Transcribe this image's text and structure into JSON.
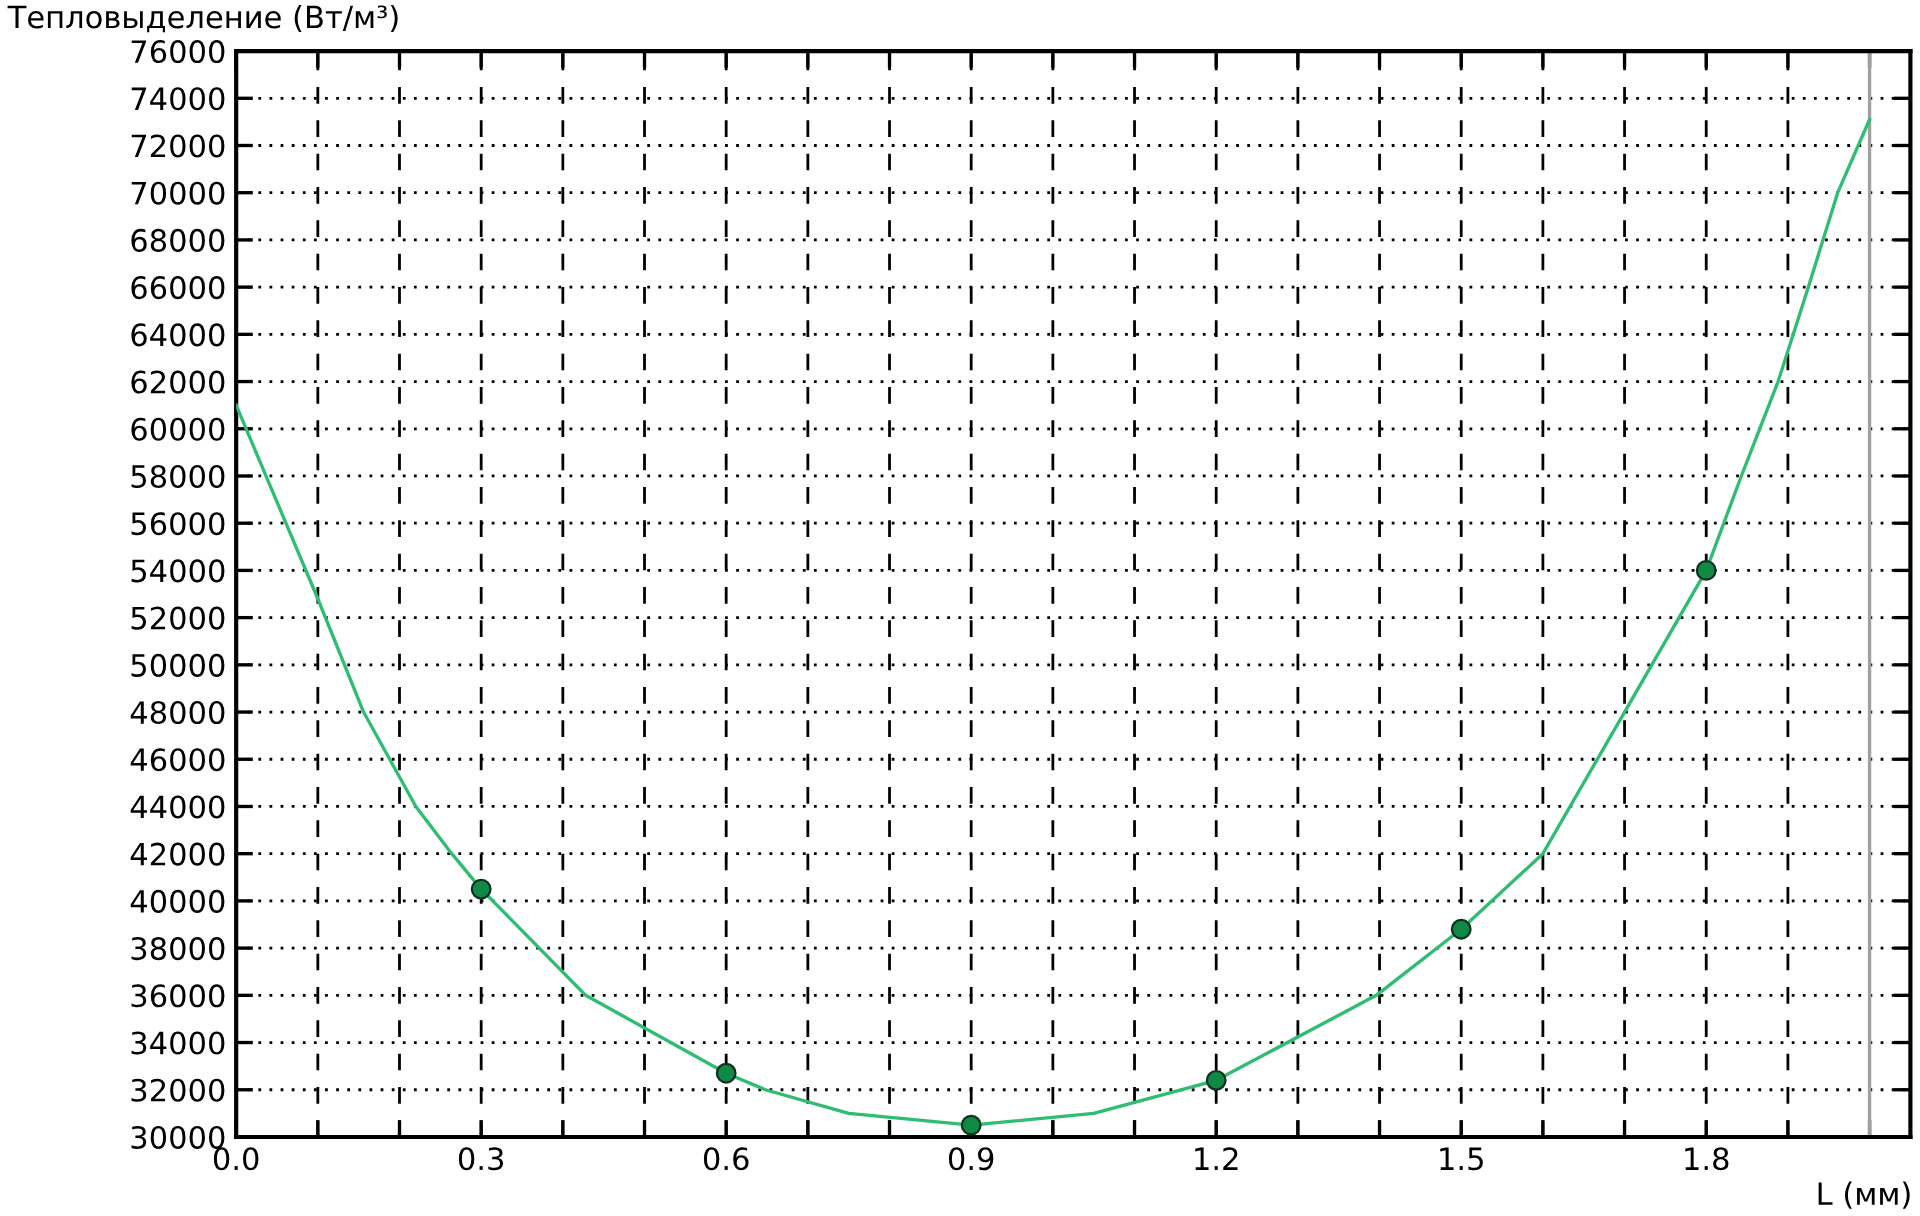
{
  "chart_data": {
    "type": "line",
    "ylabel": "Тепловыделение (Вт/м³)",
    "xlabel": "L (мм)",
    "xlim": [
      0,
      2.05
    ],
    "ylim": [
      30000,
      76000
    ],
    "xticks": [
      {
        "value": 0,
        "label": "0.0"
      },
      {
        "value": 0.1,
        "label": null
      },
      {
        "value": 0.2,
        "label": null
      },
      {
        "value": 0.3,
        "label": "0.3"
      },
      {
        "value": 0.4,
        "label": null
      },
      {
        "value": 0.5,
        "label": null
      },
      {
        "value": 0.6,
        "label": "0.6"
      },
      {
        "value": 0.7,
        "label": null
      },
      {
        "value": 0.8,
        "label": null
      },
      {
        "value": 0.9,
        "label": "0.9"
      },
      {
        "value": 1.0,
        "label": null
      },
      {
        "value": 1.1,
        "label": null
      },
      {
        "value": 1.2,
        "label": "1.2"
      },
      {
        "value": 1.3,
        "label": null
      },
      {
        "value": 1.4,
        "label": null
      },
      {
        "value": 1.5,
        "label": "1.5"
      },
      {
        "value": 1.6,
        "label": null
      },
      {
        "value": 1.7,
        "label": null
      },
      {
        "value": 1.8,
        "label": "1.8"
      },
      {
        "value": 1.9,
        "label": null
      },
      {
        "value": 2.0,
        "label": null
      }
    ],
    "yticks": [
      30000,
      32000,
      34000,
      36000,
      38000,
      40000,
      42000,
      44000,
      46000,
      48000,
      50000,
      52000,
      54000,
      56000,
      58000,
      60000,
      62000,
      64000,
      66000,
      68000,
      70000,
      72000,
      74000,
      76000
    ],
    "grid": true,
    "series": [
      {
        "color": "#2ebd72",
        "marker": "none",
        "line_style": "solid",
        "x": [
          0,
          0.1,
          0.156,
          0.188,
          0.22,
          0.264,
          0.3,
          0.428,
          0.6,
          0.648,
          0.75,
          0.9,
          1.05,
          1.2,
          1.396,
          1.5,
          1.6,
          1.7,
          1.8,
          1.843,
          1.888,
          1.925,
          1.961,
          2.0
        ],
        "values": [
          61000,
          52800,
          48000,
          46000,
          44000,
          42000,
          40500,
          36000,
          32700,
          32000,
          31000,
          30500,
          31000,
          32400,
          36000,
          38800,
          42000,
          48000,
          54000,
          58000,
          62000,
          66000,
          70000,
          73100
        ]
      },
      {
        "type": "scatter",
        "color": "#0f8a45",
        "marker": "circle",
        "x": [
          0.3,
          0.6,
          0.9,
          1.2,
          1.5,
          1.8
        ],
        "values": [
          40500,
          32700,
          30500,
          32400,
          38800,
          54000
        ]
      }
    ],
    "ref_lines": [
      {
        "axis": "x",
        "value": 2.0,
        "color": "#a0a0a0",
        "line_style": "solid"
      }
    ]
  }
}
